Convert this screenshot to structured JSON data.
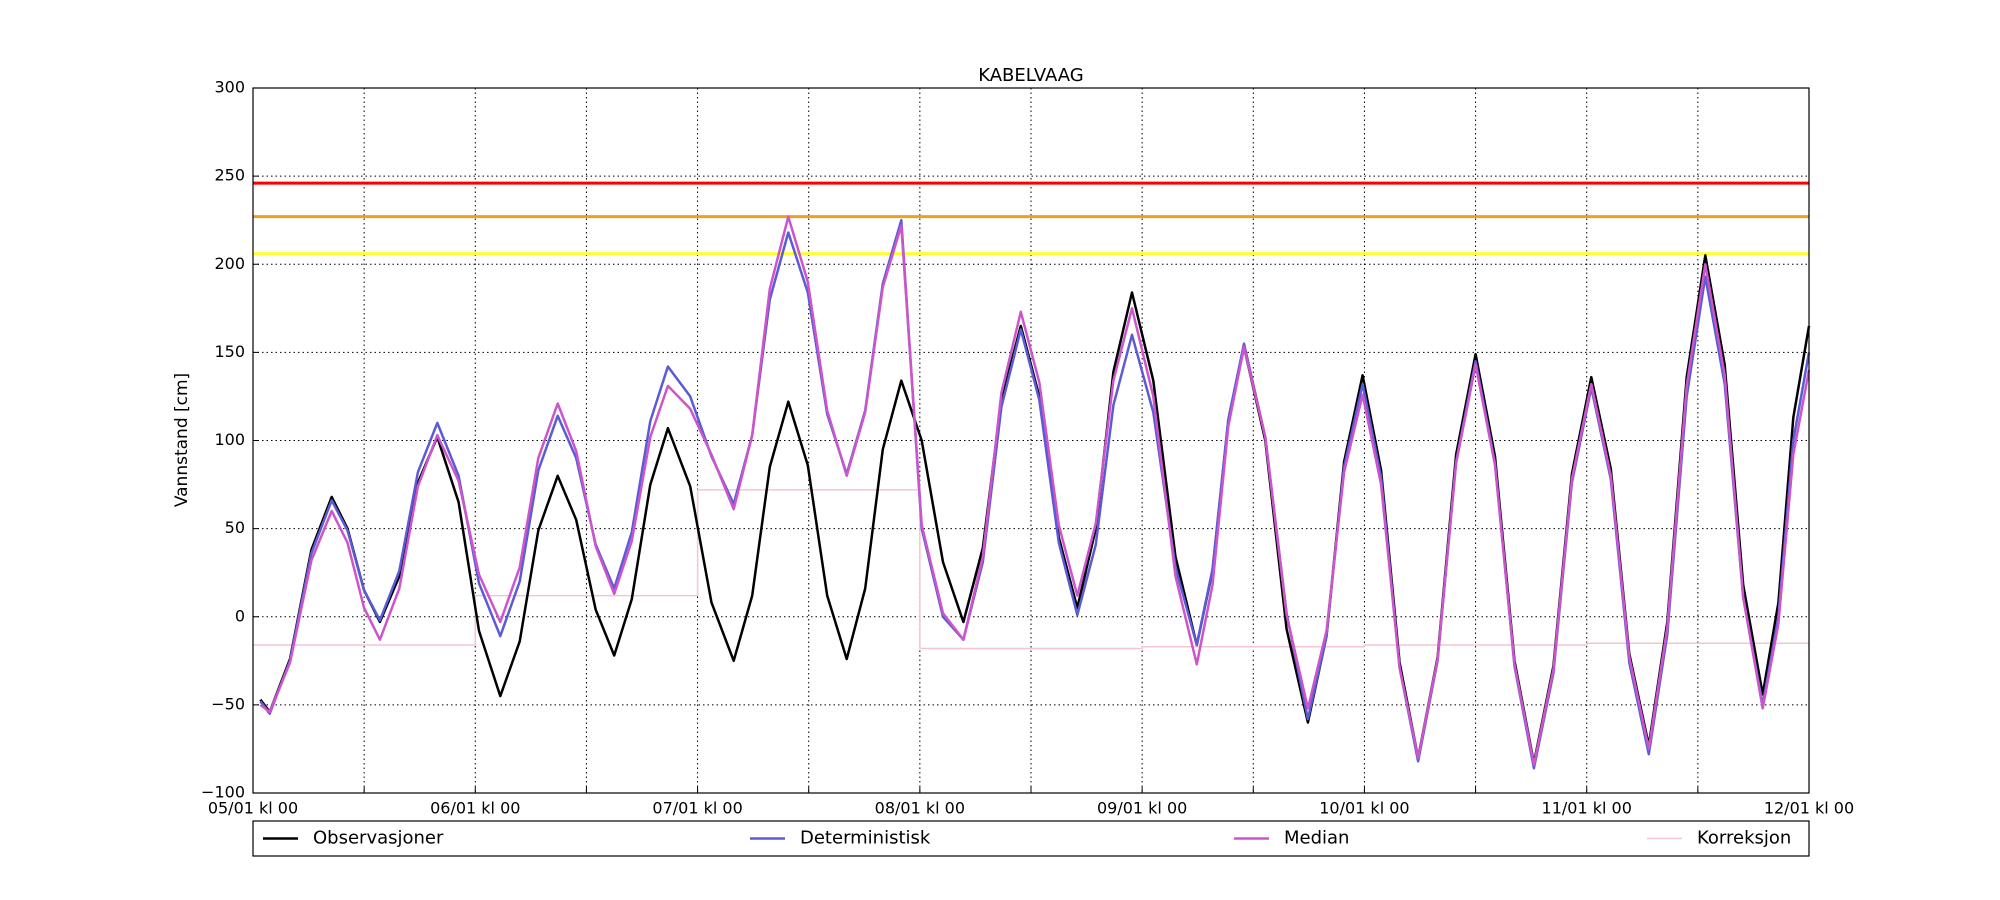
{
  "chart_data": {
    "type": "line",
    "title": "KABELVAAG",
    "y_label": "Vannstand [cm]",
    "x": [
      0.8,
      1.8,
      4.0,
      6.3,
      8.5,
      10.2,
      12.0,
      13.7,
      15.8,
      17.8,
      19.9,
      22.2,
      24.4,
      26.7,
      28.8,
      30.8,
      32.9,
      34.9,
      37.0,
      39,
      40.9,
      42.9,
      44.8,
      47.2,
      49.5,
      51.9,
      53.9,
      55.8,
      57.8,
      59.9,
      62.0,
      64.1,
      66.1,
      68.0,
      70,
      72.2,
      74.5,
      76.7,
      78.8,
      80.8,
      82.9,
      84.9,
      87.0,
      89,
      91.0,
      92.9,
      94.9,
      97.2,
      99.6,
      101.9,
      103.6,
      105.3,
      107,
      109.3,
      111.6,
      113.9,
      115.9,
      117.8,
      119.8,
      121.8,
      123.8,
      125.8,
      127.9,
      129.9,
      132,
      134.1,
      136.2,
      138.3,
      140.4,
      142.4,
      144.5,
      146.6,
      148.6,
      150.7,
      152.7,
      154.8,
      156.8,
      158.9,
      160.9,
      163,
      164.7,
      166.3,
      168
    ],
    "series": [
      {
        "name": "Observasjoner",
        "color": "#000000",
        "values": [
          -47,
          -54,
          -24,
          38,
          68,
          50,
          15,
          -3,
          23,
          76,
          102,
          65,
          -8,
          -45,
          -14,
          49,
          80,
          55,
          4,
          -22,
          10,
          75,
          107,
          74,
          8,
          -25,
          12,
          85,
          122,
          86,
          12,
          -24,
          16,
          95,
          134,
          100,
          31,
          -3,
          39,
          123,
          165,
          125,
          45,
          5,
          50,
          139,
          184,
          134,
          34,
          -16,
          26,
          111,
          153,
          100,
          -7,
          -60,
          -11,
          88,
          137,
          83,
          -26,
          -80,
          -23,
          92,
          149,
          91,
          -25,
          -83,
          -28,
          81,
          136,
          84,
          -21,
          -73,
          -3,
          136,
          205,
          143,
          18,
          -44,
          8,
          113,
          165
        ]
      },
      {
        "name": "Deterministisk",
        "color": "#5b5bd6",
        "values": [
          -48,
          -55,
          -25,
          36,
          66,
          49,
          15,
          -2,
          26,
          82,
          110,
          80,
          19,
          -11,
          20,
          83,
          114,
          90,
          41,
          16,
          48,
          111,
          142,
          125,
          91,
          64,
          103,
          180,
          218,
          184,
          115,
          81,
          117,
          189,
          225,
          50,
          0,
          -13,
          31,
          119,
          163,
          123,
          42,
          1,
          41,
          120,
          160,
          116,
          28,
          -16,
          27,
          112,
          155,
          102,
          2,
          -58,
          -11,
          85,
          132,
          79,
          -29,
          -82,
          -25,
          88,
          145,
          87,
          -28,
          -86,
          -32,
          76,
          130,
          78,
          -26,
          -78,
          -10,
          125,
          193,
          132,
          11,
          -50,
          0,
          100,
          150
        ]
      },
      {
        "name": "Median",
        "color": "#cc55cc",
        "values": [
          -50,
          -54,
          -26,
          32,
          60,
          42,
          5,
          -13,
          16,
          74,
          103,
          77,
          24,
          -3,
          28,
          90,
          121,
          94,
          40,
          13,
          43,
          102,
          131,
          118,
          92,
          61,
          103,
          186,
          227,
          190,
          117,
          80,
          116,
          187,
          222,
          52,
          2,
          -13,
          34,
          127,
          173,
          133,
          52,
          12,
          53,
          134,
          175,
          125,
          23,
          -27,
          18,
          108,
          153,
          102,
          1,
          -52,
          -8,
          82,
          126,
          75,
          -29,
          -80,
          -24,
          87,
          143,
          86,
          -27,
          -84,
          -30,
          78,
          132,
          80,
          -23,
          -75,
          -6,
          131,
          200,
          137,
          11,
          -52,
          -4,
          92,
          140
        ]
      },
      {
        "name": "Korreksjon",
        "color": "#f4c6d4",
        "x": [
          0,
          24,
          24,
          48,
          48,
          72,
          72,
          96,
          96,
          120,
          120,
          144,
          144,
          168
        ],
        "values": [
          -16,
          -16,
          12,
          12,
          72,
          72,
          -18,
          -18,
          -17,
          -17,
          -16,
          -16,
          -15,
          -15
        ]
      }
    ],
    "hlines": [
      {
        "value": 246,
        "color": "#ff0000"
      },
      {
        "value": 227,
        "color": "#f0a020"
      },
      {
        "value": 206,
        "color": "#ffff33"
      }
    ],
    "xlim": [
      0,
      168
    ],
    "ylim": [
      -100,
      300
    ],
    "xticks": [
      {
        "value": 0,
        "label": "05/01 kl 00"
      },
      {
        "value": 24,
        "label": "06/01 kl 00"
      },
      {
        "value": 48,
        "label": "07/01 kl 00"
      },
      {
        "value": 72,
        "label": "08/01 kl 00"
      },
      {
        "value": 96,
        "label": "09/01 kl 00"
      },
      {
        "value": 120,
        "label": "10/01 kl 00"
      },
      {
        "value": 144,
        "label": "11/01 kl 00"
      },
      {
        "value": 168,
        "label": "12/01 kl 00"
      }
    ],
    "xticks_minor": [
      12,
      36,
      60,
      84,
      108,
      132,
      156
    ],
    "yticks": [
      {
        "value": -100,
        "label": "−100"
      },
      {
        "value": -50,
        "label": "−50"
      },
      0,
      50,
      100,
      150,
      200,
      250,
      300
    ],
    "grid": true,
    "legend": "bottom"
  }
}
